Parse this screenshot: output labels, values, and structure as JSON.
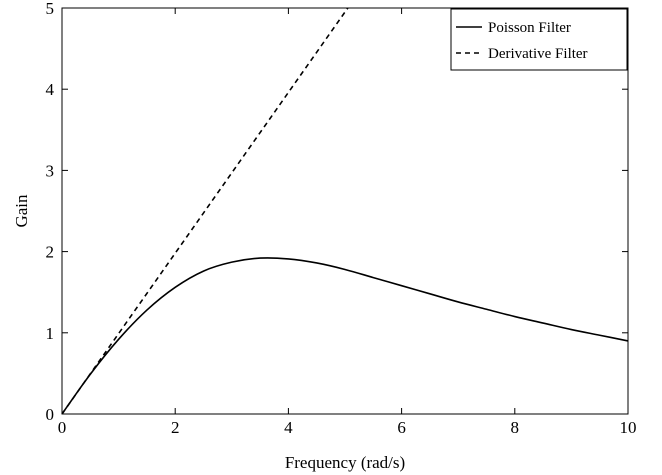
{
  "chart_data": {
    "type": "line",
    "title": "",
    "xlabel": "Frequency (rad/s)",
    "ylabel": "Gain",
    "xlim": [
      0,
      10
    ],
    "ylim": [
      0,
      5
    ],
    "xticks": [
      "0",
      "2",
      "4",
      "6",
      "8",
      "10"
    ],
    "yticks": [
      "0",
      "1",
      "2",
      "3",
      "4",
      "5"
    ],
    "grid": false,
    "legend_position": "top-right",
    "series": [
      {
        "name": "Poisson Filter",
        "style": "solid",
        "color": "#000000",
        "x": [
          0,
          0.5,
          1,
          1.5,
          2,
          2.5,
          3,
          3.5,
          4,
          4.5,
          5,
          5.5,
          6,
          6.5,
          7,
          7.5,
          8,
          8.5,
          9,
          9.5,
          10
        ],
        "y": [
          0,
          0.49,
          0.92,
          1.28,
          1.56,
          1.76,
          1.87,
          1.92,
          1.91,
          1.86,
          1.78,
          1.68,
          1.58,
          1.48,
          1.38,
          1.29,
          1.2,
          1.12,
          1.04,
          0.97,
          0.9
        ]
      },
      {
        "name": "Derivative Filter",
        "style": "dashed",
        "color": "#000000",
        "x": [
          0,
          5.05
        ],
        "y": [
          0,
          5
        ]
      }
    ]
  }
}
